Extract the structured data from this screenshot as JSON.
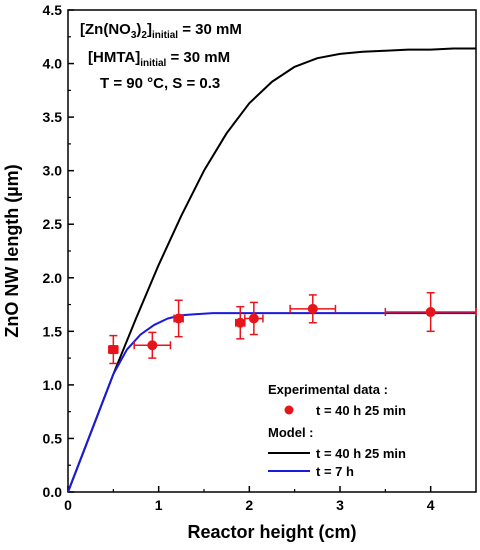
{
  "chart_data": {
    "type": "scatter",
    "xlabel": "Reactor height (cm)",
    "ylabel": "ZnO NW length (µm)",
    "xlim": [
      0,
      4.5
    ],
    "ylim": [
      0,
      4.5
    ],
    "xticks": [
      0,
      1,
      2,
      3,
      4
    ],
    "yticks": [
      0.0,
      0.5,
      1.0,
      1.5,
      2.0,
      2.5,
      3.0,
      3.5,
      4.0,
      4.5
    ],
    "grid": false,
    "annotations": {
      "line1": {
        "prefix": "[Zn(NO",
        "sub1": "3",
        "mid": ")",
        "sub2": "2",
        "close": "]",
        "sub3": "initial",
        "suffix": " = 30 mM"
      },
      "line2": {
        "prefix": "[HMTA]",
        "sub": "initial",
        "suffix": " = 30 mM"
      },
      "line3": "T = 90 °C, S = 0.3"
    },
    "legend": {
      "placement": "bottom-right",
      "experimental_header": "Experimental data :",
      "model_header": "Model :",
      "entries": {
        "exp": "t = 40 h 25 min",
        "model_long": "t = 40 h 25 min",
        "model_short": "t = 7 h"
      }
    },
    "colors": {
      "experimental": "#e8141c",
      "model_long": "#000000",
      "model_short": "#1a1adc"
    },
    "series": [
      {
        "name": "t = 40 h 25 min",
        "kind": "points",
        "points": [
          {
            "x": 0.5,
            "y": 1.33,
            "xerr": 0.05,
            "yerr": 0.13
          },
          {
            "x": 0.93,
            "y": 1.37,
            "xerr": 0.2,
            "yerr": 0.12
          },
          {
            "x": 1.22,
            "y": 1.62,
            "xerr": 0.05,
            "yerr": 0.17
          },
          {
            "x": 1.9,
            "y": 1.58,
            "xerr": 0.05,
            "yerr": 0.15
          },
          {
            "x": 2.05,
            "y": 1.62,
            "xerr": 0.1,
            "yerr": 0.15
          },
          {
            "x": 2.7,
            "y": 1.71,
            "xerr": 0.25,
            "yerr": 0.13
          },
          {
            "x": 4.0,
            "y": 1.68,
            "xerr": 0.5,
            "yerr": 0.18
          }
        ]
      },
      {
        "name": "t = 40 h 25 min",
        "kind": "line",
        "x": [
          0,
          0.25,
          0.5,
          0.75,
          1.0,
          1.25,
          1.5,
          1.75,
          2.0,
          2.25,
          2.5,
          2.75,
          3.0,
          3.25,
          3.5,
          3.75,
          4.0,
          4.25,
          4.5
        ],
        "y": [
          0,
          0.55,
          1.1,
          1.62,
          2.12,
          2.58,
          3.0,
          3.35,
          3.63,
          3.83,
          3.97,
          4.05,
          4.09,
          4.11,
          4.12,
          4.13,
          4.13,
          4.14,
          4.14
        ]
      },
      {
        "name": "t = 7 h",
        "kind": "line",
        "x": [
          0,
          0.25,
          0.5,
          0.65,
          0.8,
          0.95,
          1.1,
          1.25,
          1.4,
          1.6,
          1.8,
          2.0,
          2.5,
          3.0,
          3.5,
          4.0,
          4.5
        ],
        "y": [
          0,
          0.55,
          1.1,
          1.33,
          1.47,
          1.56,
          1.62,
          1.65,
          1.66,
          1.67,
          1.67,
          1.67,
          1.67,
          1.67,
          1.67,
          1.67,
          1.67
        ]
      }
    ]
  }
}
